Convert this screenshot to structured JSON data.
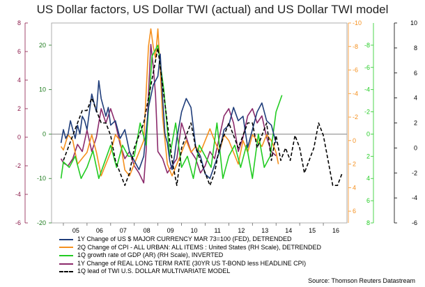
{
  "chart_data": {
    "type": "line",
    "title": "US Dollar factors, US Dollar TWI (actual) and US Dollar TWI model",
    "source": "Source: Thomson Reuters Datastream",
    "x_ticks": [
      "05",
      "06",
      "07",
      "08",
      "09",
      "10",
      "11",
      "12",
      "13",
      "14",
      "15",
      "16"
    ],
    "x_range": [
      2004.5,
      2017.0
    ],
    "axes": {
      "left_outer": {
        "range": [
          -6,
          8
        ],
        "ticks": [
          8,
          6,
          4,
          2,
          0,
          -2,
          -4,
          -6
        ],
        "color": "#8b1a4a",
        "inverted": false
      },
      "left_inner": {
        "range": [
          -20,
          25
        ],
        "ticks": [
          20,
          10,
          0,
          -10,
          -20
        ],
        "color": "#1a7a1a",
        "inverted": false
      },
      "right_orange": {
        "range": [
          -10,
          7
        ],
        "ticks": [
          -10,
          -8,
          -6,
          -4,
          -2,
          0,
          2,
          4,
          6
        ],
        "labels": [
          "-10",
          "-8",
          "-6",
          "-4",
          "-2",
          "0",
          "2",
          "4",
          "6"
        ],
        "color": "#f5901e",
        "inverted": true
      },
      "right_green": {
        "range": [
          -10,
          8
        ],
        "ticks": [
          -8,
          -6,
          -4,
          -2,
          0,
          2,
          4,
          6,
          8
        ],
        "labels": [
          "-8",
          "-6",
          "-4",
          "-2",
          "0",
          "2",
          "4",
          "6",
          "8"
        ],
        "color": "#22cc22",
        "inverted": true
      },
      "right_black": {
        "range": [
          -6,
          10
        ],
        "ticks": [
          10,
          8,
          6,
          4,
          2,
          0,
          -2,
          -4,
          -6
        ],
        "color": "#000000",
        "inverted": false
      }
    },
    "series": [
      {
        "name": "1Y Change of US $ MAJOR CURRENCY MAR 73=100 (FED), DETRENDED",
        "color": "#1f3d7a",
        "axis": "left_inner",
        "dash": "",
        "x": [
          2004.9,
          2005.0,
          2005.1,
          2005.2,
          2005.3,
          2005.4,
          2005.5,
          2005.6,
          2005.7,
          2005.8,
          2005.9,
          2006.0,
          2006.2,
          2006.4,
          2006.5,
          2006.6,
          2006.8,
          2006.9,
          2007.0,
          2007.2,
          2007.4,
          2007.6,
          2007.8,
          2008.0,
          2008.2,
          2008.4,
          2008.6,
          2008.8,
          2008.9,
          2009.0,
          2009.1,
          2009.2,
          2009.3,
          2009.4,
          2009.5,
          2009.6,
          2009.7,
          2009.8,
          2010.0,
          2010.2,
          2010.4,
          2010.6,
          2010.8,
          2011.0,
          2011.2,
          2011.4,
          2011.6,
          2011.8,
          2012.0,
          2012.2,
          2012.4,
          2012.6,
          2012.8,
          2013.0,
          2013.2,
          2013.4,
          2013.6,
          2013.8,
          2014.0
        ],
        "y": [
          -2,
          1,
          -1,
          0,
          3,
          1,
          -1,
          2,
          0,
          4,
          3,
          1,
          9,
          5,
          12,
          8,
          4,
          6,
          2,
          3,
          -1,
          1,
          -4,
          -6,
          -8,
          -5,
          6,
          11,
          12,
          13,
          18,
          8,
          0,
          -2,
          -6,
          -8,
          -5,
          -1,
          5,
          8,
          6,
          -3,
          -5,
          -9,
          -10,
          -7,
          -4,
          1,
          2,
          6,
          3,
          4,
          -3,
          1,
          5,
          7,
          3,
          2,
          -2
        ]
      },
      {
        "name": "2Q Change of CPI - ALL URBAN: ALL ITEMS : United States (RH Scale), DETRENDED",
        "color": "#f5901e",
        "axis": "right_orange",
        "dash": "",
        "x": [
          2004.9,
          2005.0,
          2005.2,
          2005.4,
          2005.6,
          2005.8,
          2006.0,
          2006.2,
          2006.4,
          2006.6,
          2006.8,
          2007.0,
          2007.2,
          2007.4,
          2007.6,
          2007.8,
          2008.0,
          2008.2,
          2008.4,
          2008.6,
          2008.7,
          2008.8,
          2008.9,
          2009.0,
          2009.1,
          2009.2,
          2009.4,
          2009.6,
          2009.8,
          2010.0,
          2010.2,
          2010.4,
          2010.6,
          2010.8,
          2011.0,
          2011.2,
          2011.4,
          2011.6,
          2011.8,
          2012.0,
          2012.2,
          2012.4,
          2012.6,
          2012.8,
          2013.0,
          2013.2,
          2013.4,
          2013.6,
          2013.8,
          2014.0,
          2014.1
        ],
        "y": [
          0.5,
          0.8,
          -0.5,
          0,
          2,
          1.5,
          1,
          -0.5,
          1,
          3,
          2,
          1,
          -0.5,
          0,
          2.5,
          3,
          2,
          1,
          0,
          -8,
          -9.5,
          -8,
          -7,
          -9.5,
          -6,
          -2,
          2,
          3,
          2,
          1,
          0,
          1,
          0.5,
          1,
          0,
          -1,
          0,
          1,
          -0.5,
          0,
          1,
          2,
          0,
          1,
          -0.5,
          0,
          0.5,
          -0.5,
          0,
          1,
          2
        ]
      },
      {
        "name": "1Q growth rate of GDP (AR) (RH Scale), INVERTED",
        "color": "#22cc22",
        "axis": "right_green",
        "dash": "",
        "x": [
          2004.9,
          2005.0,
          2005.25,
          2005.5,
          2005.75,
          2006.0,
          2006.25,
          2006.5,
          2006.75,
          2007.0,
          2007.25,
          2007.5,
          2007.75,
          2008.0,
          2008.25,
          2008.5,
          2008.75,
          2009.0,
          2009.25,
          2009.5,
          2009.75,
          2010.0,
          2010.25,
          2010.5,
          2010.75,
          2011.0,
          2011.25,
          2011.5,
          2011.75,
          2012.0,
          2012.25,
          2012.5,
          2012.75,
          2013.0,
          2013.25,
          2013.5,
          2013.75,
          2014.0,
          2014.25
        ],
        "y": [
          4,
          2.5,
          3,
          2,
          4,
          3,
          1.5,
          4,
          2.5,
          1,
          3,
          1,
          2,
          2,
          -1,
          1,
          -7,
          -8,
          -4,
          2,
          -1,
          3,
          2,
          4,
          1,
          2,
          3,
          -1,
          4,
          2,
          1,
          3,
          1,
          4,
          0,
          3,
          2,
          -2,
          -3.5
        ]
      },
      {
        "name": "1Y Change of REAL LONG TERM RATE (30YR US T-BOND less HEADLINE CPI)",
        "color": "#8b2a6b",
        "axis": "left_outer",
        "dash": "",
        "x": [
          2004.9,
          2005.0,
          2005.2,
          2005.4,
          2005.6,
          2005.8,
          2006.0,
          2006.2,
          2006.4,
          2006.6,
          2006.8,
          2007.0,
          2007.2,
          2007.4,
          2007.6,
          2007.8,
          2008.0,
          2008.2,
          2008.4,
          2008.5,
          2008.6,
          2008.7,
          2008.8,
          2008.9,
          2009.0,
          2009.2,
          2009.4,
          2009.6,
          2009.8,
          2010.0,
          2010.2,
          2010.4,
          2010.6,
          2010.8,
          2011.0,
          2011.2,
          2011.4,
          2011.6,
          2011.8,
          2012.0,
          2012.2,
          2012.4,
          2012.6,
          2012.8,
          2013.0,
          2013.2,
          2013.4,
          2013.6,
          2013.8,
          2014.0
        ],
        "y": [
          -1.5,
          -1.8,
          -2,
          -1.5,
          -0.5,
          -1,
          0.5,
          -1,
          0,
          2,
          1,
          2,
          1,
          -0.5,
          -1.5,
          -1,
          -2,
          -2.5,
          -3.2,
          -1,
          3,
          6.5,
          5,
          3,
          -1,
          -1.5,
          -2.5,
          -2,
          -1.5,
          1,
          0,
          -1,
          -1.5,
          -2.5,
          -2,
          -1,
          -1.5,
          0,
          1.5,
          2,
          1,
          -1,
          0,
          1.5,
          2,
          1,
          1.5,
          0,
          -1,
          -1.3
        ]
      },
      {
        "name": "1Q lead of TWI U.S. DOLLAR MULTIVARIATE MODEL",
        "color": "#000000",
        "axis": "right_black",
        "dash": "5,3",
        "x": [
          2005.0,
          2005.2,
          2005.4,
          2005.6,
          2005.8,
          2006.0,
          2006.2,
          2006.4,
          2006.6,
          2006.8,
          2007.0,
          2007.2,
          2007.4,
          2007.6,
          2007.8,
          2008.0,
          2008.2,
          2008.4,
          2008.6,
          2008.8,
          2009.0,
          2009.2,
          2009.4,
          2009.6,
          2009.8,
          2010.0,
          2010.2,
          2010.4,
          2010.6,
          2010.8,
          2011.0,
          2011.2,
          2011.4,
          2011.6,
          2011.8,
          2012.0,
          2012.2,
          2012.4,
          2012.6,
          2012.8,
          2013.0,
          2013.2,
          2013.4,
          2013.6,
          2013.8,
          2014.0,
          2014.2,
          2014.4,
          2014.6,
          2014.8,
          2015.0,
          2015.2,
          2015.4,
          2015.6,
          2015.8,
          2016.0,
          2016.2,
          2016.4,
          2016.6,
          2016.8
        ],
        "y": [
          -1,
          0,
          1,
          2,
          3,
          3,
          4,
          3,
          2,
          2,
          1,
          -1,
          -2,
          -3,
          -2,
          0,
          1,
          2,
          4,
          6,
          8,
          5,
          2,
          -1,
          -3,
          0,
          1,
          2,
          0,
          -1,
          -2,
          -3,
          -2,
          0,
          1,
          2,
          1,
          0,
          1,
          2,
          2,
          0,
          1,
          2,
          -1,
          1,
          -1,
          0,
          -1,
          1,
          0,
          -2,
          -1,
          0,
          2,
          1,
          -1,
          -3,
          -3,
          -2
        ]
      }
    ]
  }
}
